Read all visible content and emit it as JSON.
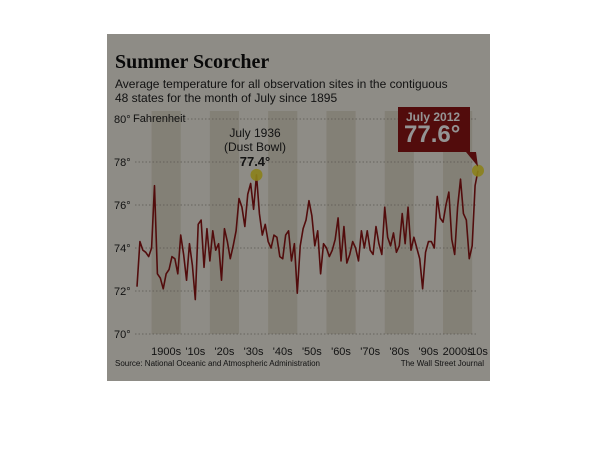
{
  "header": {
    "title": "Summer Scorcher",
    "subtitle_line1": "Average temperature for all observation sites in the contiguous",
    "subtitle_line2": "48 states for the month of July since 1895"
  },
  "footer": {
    "source": "Source: National Oceanic and Atmospheric Administration",
    "credit": "The Wall Street Journal"
  },
  "colors": {
    "line": "#8e1616",
    "callout": "#8e1616",
    "background": "#f4f1e7",
    "band": "#e2dccb",
    "highlight": "#f0de2e"
  },
  "chart_data": {
    "type": "line",
    "y_unit_label": "Fahrenheit",
    "xlim": [
      1895,
      2012
    ],
    "ylim": [
      70,
      80
    ],
    "y_ticks": [
      70,
      72,
      74,
      76,
      78,
      80
    ],
    "y_tick_labels": [
      "70°",
      "72°",
      "74°",
      "76°",
      "78°",
      "80°"
    ],
    "x_tick_labels": [
      {
        "label": "1900s",
        "x": 1905
      },
      {
        "label": "'10s",
        "x": 1915
      },
      {
        "label": "'20s",
        "x": 1925
      },
      {
        "label": "'30s",
        "x": 1935
      },
      {
        "label": "'40s",
        "x": 1945
      },
      {
        "label": "'50s",
        "x": 1955
      },
      {
        "label": "'60s",
        "x": 1965
      },
      {
        "label": "'70s",
        "x": 1975
      },
      {
        "label": "'80s",
        "x": 1985
      },
      {
        "label": "'90s",
        "x": 1995
      },
      {
        "label": "2000s",
        "x": 2005
      },
      {
        "label": "'10s",
        "x": 2012
      }
    ],
    "shaded_decades": [
      [
        1900,
        1909
      ],
      [
        1920,
        1929
      ],
      [
        1940,
        1949
      ],
      [
        1960,
        1969
      ],
      [
        1980,
        1989
      ],
      [
        2000,
        2009
      ]
    ],
    "x": [
      1895,
      1896,
      1897,
      1898,
      1899,
      1900,
      1901,
      1902,
      1903,
      1904,
      1905,
      1906,
      1907,
      1908,
      1909,
      1910,
      1911,
      1912,
      1913,
      1914,
      1915,
      1916,
      1917,
      1918,
      1919,
      1920,
      1921,
      1922,
      1923,
      1924,
      1925,
      1926,
      1927,
      1928,
      1929,
      1930,
      1931,
      1932,
      1933,
      1934,
      1935,
      1936,
      1937,
      1938,
      1939,
      1940,
      1941,
      1942,
      1943,
      1944,
      1945,
      1946,
      1947,
      1948,
      1949,
      1950,
      1951,
      1952,
      1953,
      1954,
      1955,
      1956,
      1957,
      1958,
      1959,
      1960,
      1961,
      1962,
      1963,
      1964,
      1965,
      1966,
      1967,
      1968,
      1969,
      1970,
      1971,
      1972,
      1973,
      1974,
      1975,
      1976,
      1977,
      1978,
      1979,
      1980,
      1981,
      1982,
      1983,
      1984,
      1985,
      1986,
      1987,
      1988,
      1989,
      1990,
      1991,
      1992,
      1993,
      1994,
      1995,
      1996,
      1997,
      1998,
      1999,
      2000,
      2001,
      2002,
      2003,
      2004,
      2005,
      2006,
      2007,
      2008,
      2009,
      2010,
      2011,
      2012
    ],
    "series": [
      {
        "values": [
          72.2,
          74.3,
          73.9,
          73.8,
          73.6,
          74.0,
          76.9,
          72.8,
          72.6,
          72.1,
          72.8,
          73.0,
          73.6,
          73.5,
          72.8,
          74.6,
          73.7,
          72.5,
          74.2,
          73.2,
          71.6,
          75.1,
          75.3,
          73.1,
          74.9,
          73.4,
          74.8,
          73.9,
          74.2,
          72.5,
          74.9,
          74.3,
          73.5,
          74.1,
          74.8,
          76.3,
          75.9,
          75.0,
          76.5,
          77.0,
          75.8,
          77.4,
          75.6,
          74.6,
          75.1,
          74.3,
          74.0,
          74.6,
          74.5,
          73.6,
          73.5,
          74.6,
          74.8,
          73.4,
          74.2,
          71.9,
          74.1,
          74.9,
          75.3,
          76.2,
          75.5,
          74.1,
          74.8,
          72.8,
          74.2,
          74.0,
          73.6,
          73.9,
          74.4,
          75.4,
          73.4,
          75.0,
          73.3,
          73.7,
          74.3,
          74.0,
          73.4,
          74.8,
          74.0,
          74.8,
          73.9,
          73.7,
          75.0,
          74.2,
          73.7,
          75.9,
          74.5,
          74.1,
          74.7,
          73.8,
          74.1,
          75.6,
          74.2,
          75.9,
          73.9,
          74.5,
          74.0,
          73.5,
          72.1,
          73.8,
          74.3,
          74.3,
          74.0,
          76.4,
          75.4,
          75.2,
          76.0,
          76.6,
          74.4,
          73.7,
          75.9,
          77.2,
          75.6,
          75.3,
          73.5,
          74.1,
          76.9,
          77.6
        ]
      }
    ],
    "annotations": [
      {
        "x": 1936,
        "y": 77.4,
        "line1": "July 1936",
        "line2": "(Dust Bowl)",
        "value_label": "77.4°"
      },
      {
        "x": 2012,
        "y": 77.6,
        "line1": "July 2012",
        "value_label": "77.6°"
      }
    ]
  }
}
